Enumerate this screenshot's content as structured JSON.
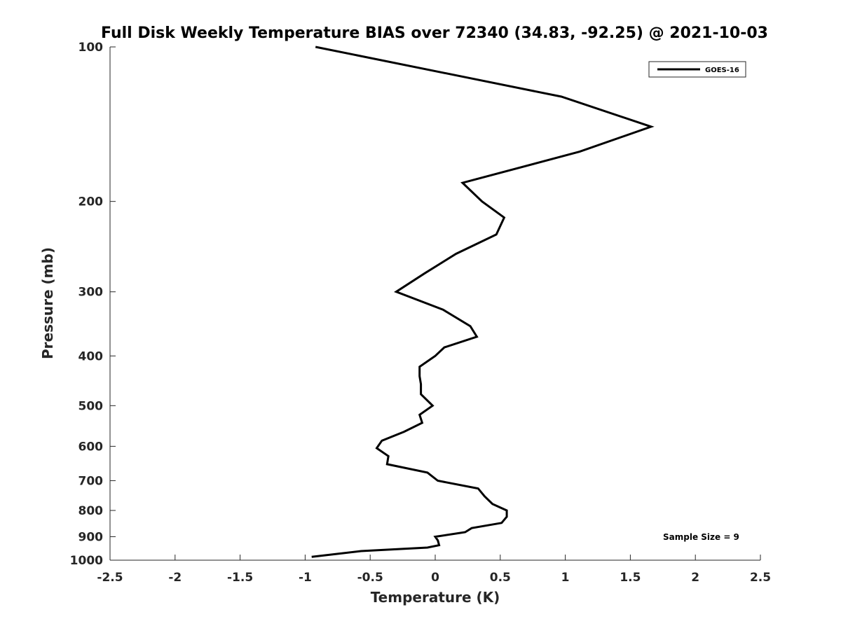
{
  "chart_data": {
    "type": "line",
    "title": "Full Disk Weekly Temperature BIAS over 72340 (34.83, -92.25) @ 2021-10-03",
    "xlabel": "Temperature (K)",
    "ylabel": "Pressure (mb)",
    "xlim": [
      -2.5,
      2.5
    ],
    "ylim": [
      100,
      1000
    ],
    "y_scale": "log",
    "y_reversed": true,
    "grid": false,
    "legend_position": "top-right",
    "x_ticks": [
      -2.5,
      -2,
      -1.5,
      -1,
      -0.5,
      0,
      0.5,
      1,
      1.5,
      2,
      2.5
    ],
    "x_tick_labels": [
      "-2.5",
      "-2",
      "-1.5",
      "-1",
      "-0.5",
      "0",
      "0.5",
      "1",
      "1.5",
      "2",
      "2.5"
    ],
    "y_ticks": [
      100,
      200,
      300,
      400,
      500,
      600,
      700,
      800,
      900,
      1000
    ],
    "y_tick_labels": [
      "100",
      "200",
      "300",
      "400",
      "500",
      "600",
      "700",
      "800",
      "900",
      "1000"
    ],
    "series": [
      {
        "name": "GOES-16",
        "color": "#000000",
        "points": [
          {
            "x": -0.92,
            "y": 100
          },
          {
            "x": 0.97,
            "y": 125
          },
          {
            "x": 1.66,
            "y": 143
          },
          {
            "x": 1.11,
            "y": 160
          },
          {
            "x": 0.21,
            "y": 184
          },
          {
            "x": 0.36,
            "y": 200
          },
          {
            "x": 0.53,
            "y": 215
          },
          {
            "x": 0.47,
            "y": 232
          },
          {
            "x": 0.16,
            "y": 253
          },
          {
            "x": -0.08,
            "y": 276
          },
          {
            "x": -0.3,
            "y": 300
          },
          {
            "x": 0.06,
            "y": 325
          },
          {
            "x": 0.27,
            "y": 350
          },
          {
            "x": 0.32,
            "y": 367
          },
          {
            "x": 0.07,
            "y": 385
          },
          {
            "x": 0.0,
            "y": 400
          },
          {
            "x": -0.12,
            "y": 420
          },
          {
            "x": -0.12,
            "y": 438
          },
          {
            "x": -0.11,
            "y": 454
          },
          {
            "x": -0.11,
            "y": 475
          },
          {
            "x": -0.02,
            "y": 500
          },
          {
            "x": -0.12,
            "y": 521
          },
          {
            "x": -0.1,
            "y": 540
          },
          {
            "x": -0.24,
            "y": 562
          },
          {
            "x": -0.41,
            "y": 585
          },
          {
            "x": -0.45,
            "y": 605
          },
          {
            "x": -0.36,
            "y": 627
          },
          {
            "x": -0.37,
            "y": 650
          },
          {
            "x": -0.06,
            "y": 675
          },
          {
            "x": 0.02,
            "y": 700
          },
          {
            "x": 0.33,
            "y": 725
          },
          {
            "x": 0.38,
            "y": 751
          },
          {
            "x": 0.44,
            "y": 777
          },
          {
            "x": 0.55,
            "y": 800
          },
          {
            "x": 0.55,
            "y": 823
          },
          {
            "x": 0.51,
            "y": 846
          },
          {
            "x": 0.28,
            "y": 866
          },
          {
            "x": 0.23,
            "y": 882
          },
          {
            "x": 0.0,
            "y": 900
          },
          {
            "x": 0.02,
            "y": 915
          },
          {
            "x": 0.03,
            "y": 935
          },
          {
            "x": -0.06,
            "y": 945
          },
          {
            "x": -0.57,
            "y": 960
          },
          {
            "x": -0.95,
            "y": 985
          }
        ]
      }
    ],
    "annotations": [
      {
        "text": "Sample Size = 9"
      }
    ]
  }
}
